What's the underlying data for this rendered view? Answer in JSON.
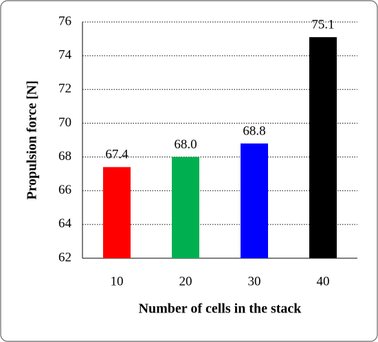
{
  "chart_data": {
    "type": "bar",
    "x_label": "Number of cells in the stack",
    "y_label": "Propulsion force [N]",
    "categories": [
      "10",
      "20",
      "30",
      "40"
    ],
    "values": [
      67.4,
      68.0,
      68.8,
      75.1
    ],
    "value_labels": [
      "67.4",
      "68.0",
      "68.8",
      "75.1"
    ],
    "colors": [
      "#ff0000",
      "#00b050",
      "#0000ff",
      "#000000"
    ],
    "ylim": [
      62,
      76
    ],
    "yticks": [
      62,
      64,
      66,
      68,
      70,
      72,
      74,
      76
    ],
    "grid": true
  }
}
